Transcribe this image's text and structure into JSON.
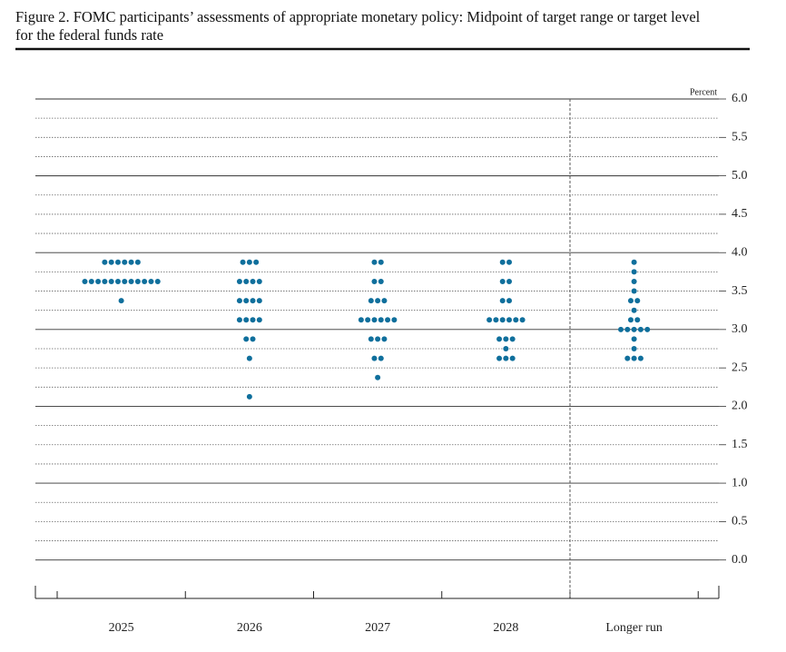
{
  "chart_data": {
    "type": "dot_plot",
    "title": "Figure 2. FOMC participants’ assessments of appropriate monetary policy: Midpoint of target range or target level for the federal funds rate",
    "y_unit": "Percent",
    "color": "#0f6f9c",
    "ylim": [
      -0.5,
      6.0
    ],
    "yticks": [
      {
        "value": 0,
        "label": "0.0"
      },
      {
        "value": 0.5,
        "label": "0.5"
      },
      {
        "value": 1,
        "label": "1.0"
      },
      {
        "value": 1.5,
        "label": "1.5"
      },
      {
        "value": 2,
        "label": "2.0"
      },
      {
        "value": 2.5,
        "label": "2.5"
      },
      {
        "value": 3,
        "label": "3.0"
      },
      {
        "value": 3.5,
        "label": "3.5"
      },
      {
        "value": 4,
        "label": "4.0"
      },
      {
        "value": 4.5,
        "label": "4.5"
      },
      {
        "value": 5,
        "label": "5.0"
      },
      {
        "value": 5.5,
        "label": "5.5"
      },
      {
        "value": 6,
        "label": "6.0"
      }
    ],
    "grid": true,
    "groups": [
      {
        "label": "2025",
        "dots": [
          {
            "y": 3.875,
            "count": 6
          },
          {
            "y": 3.625,
            "count": 12
          },
          {
            "y": 3.375,
            "count": 1
          }
        ]
      },
      {
        "label": "2026",
        "dots": [
          {
            "y": 3.875,
            "count": 3
          },
          {
            "y": 3.625,
            "count": 4
          },
          {
            "y": 3.375,
            "count": 4
          },
          {
            "y": 3.125,
            "count": 4
          },
          {
            "y": 2.875,
            "count": 2
          },
          {
            "y": 2.625,
            "count": 1
          },
          {
            "y": 2.125,
            "count": 1
          }
        ]
      },
      {
        "label": "2027",
        "dots": [
          {
            "y": 3.875,
            "count": 2
          },
          {
            "y": 3.625,
            "count": 2
          },
          {
            "y": 3.375,
            "count": 3
          },
          {
            "y": 3.125,
            "count": 6
          },
          {
            "y": 2.875,
            "count": 3
          },
          {
            "y": 2.625,
            "count": 2
          },
          {
            "y": 2.375,
            "count": 1
          }
        ]
      },
      {
        "label": "2028",
        "dots": [
          {
            "y": 3.875,
            "count": 2
          },
          {
            "y": 3.625,
            "count": 2
          },
          {
            "y": 3.375,
            "count": 2
          },
          {
            "y": 3.125,
            "count": 6
          },
          {
            "y": 2.875,
            "count": 3
          },
          {
            "y": 2.75,
            "count": 1
          },
          {
            "y": 2.625,
            "count": 3
          }
        ]
      },
      {
        "label": "Longer run",
        "dots": [
          {
            "y": 3.875,
            "count": 1
          },
          {
            "y": 3.75,
            "count": 1
          },
          {
            "y": 3.625,
            "count": 1
          },
          {
            "y": 3.5,
            "count": 1
          },
          {
            "y": 3.375,
            "count": 2
          },
          {
            "y": 3.25,
            "count": 1
          },
          {
            "y": 3.125,
            "count": 2
          },
          {
            "y": 3.0,
            "count": 5
          },
          {
            "y": 2.875,
            "count": 1
          },
          {
            "y": 2.75,
            "count": 1
          },
          {
            "y": 2.625,
            "count": 3
          }
        ]
      }
    ]
  }
}
